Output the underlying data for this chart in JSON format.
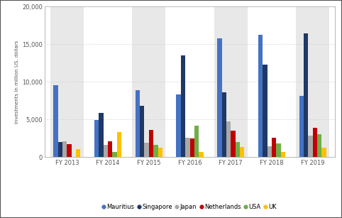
{
  "categories": [
    "FY 2013",
    "FY 2014",
    "FY 2015",
    "FY 2016",
    "FY 2017",
    "FY 2018",
    "FY 2019"
  ],
  "series": {
    "Mauritius": [
      9500,
      4900,
      8900,
      8300,
      15800,
      16200,
      8100
    ],
    "Singapore": [
      2000,
      5900,
      6800,
      13500,
      8600,
      12300,
      16400
    ],
    "Japan": [
      2100,
      1600,
      1900,
      2600,
      4700,
      1400,
      2800
    ],
    "Netherlands": [
      1700,
      2100,
      3600,
      2500,
      3500,
      2600,
      3900
    ],
    "USA": [
      0,
      700,
      1600,
      4200,
      2000,
      1800,
      3000
    ],
    "UK": [
      1000,
      3300,
      1200,
      700,
      1300,
      700,
      1200
    ]
  },
  "colors": {
    "Mauritius": "#4472C4",
    "Singapore": "#1F3864",
    "Japan": "#A9A9A9",
    "Netherlands": "#C00000",
    "USA": "#70AD47",
    "UK": "#FFC000"
  },
  "ylabel": "Investments in million US. dollars",
  "ylim": [
    0,
    20000
  ],
  "yticks": [
    0,
    5000,
    10000,
    15000,
    20000
  ],
  "background_color": "#FFFFFF",
  "plot_bg_color": "#FFFFFF",
  "alt_bg_color": "#E8E8E8",
  "grid_color": "#CCCCCC",
  "border_color": "#AAAAAA",
  "outer_border_color": "#555555"
}
